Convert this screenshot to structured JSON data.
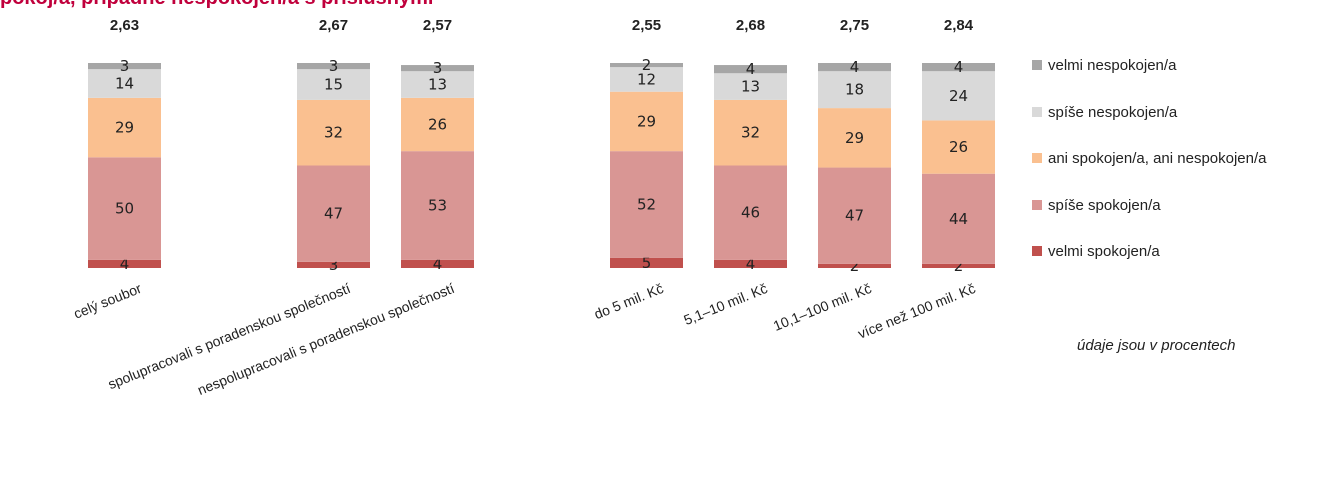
{
  "title_fragment": "pokoj/a, případně nespokojen/a s příslušnými",
  "note": "údaje jsou v procentech",
  "chart_data": {
    "type": "bar",
    "stacked": true,
    "categories": [
      "celý soubor",
      "spolupracovali s poradenskou společností",
      "nespolupracovali s poradenskou společností",
      "do 5 mil. Kč",
      "5,1–10 mil. Kč",
      "10,1–100 mil. Kč",
      "více než 100 mil. Kč"
    ],
    "means": [
      "2,63",
      "2,67",
      "2,57",
      "2,55",
      "2,68",
      "2,75",
      "2,84"
    ],
    "series": [
      {
        "name": "velmi spokojen/a",
        "color": "#c0504d",
        "values": [
          4,
          3,
          4,
          5,
          4,
          2,
          2
        ]
      },
      {
        "name": "spíše spokojen/a",
        "color": "#d99694",
        "values": [
          50,
          47,
          53,
          52,
          46,
          47,
          44
        ]
      },
      {
        "name": "ani spokojen/a, ani nespokojen/a",
        "color": "#fac090",
        "values": [
          29,
          32,
          26,
          29,
          32,
          29,
          26
        ]
      },
      {
        "name": "spíše nespokojen/a",
        "color": "#d9d9d9",
        "values": [
          14,
          15,
          13,
          12,
          13,
          18,
          24
        ]
      },
      {
        "name": "velmi nespokojen/a",
        "color": "#a6a6a6",
        "values": [
          3,
          3,
          3,
          2,
          4,
          4,
          4
        ]
      }
    ],
    "legend_order": [
      "velmi nespokojen/a",
      "spíše nespokojen/a",
      "ani spokojen/a, ani nespokojen/a",
      "spíše spokojen/a",
      "velmi spokojen/a"
    ],
    "legend_position": "right",
    "grid": false
  }
}
